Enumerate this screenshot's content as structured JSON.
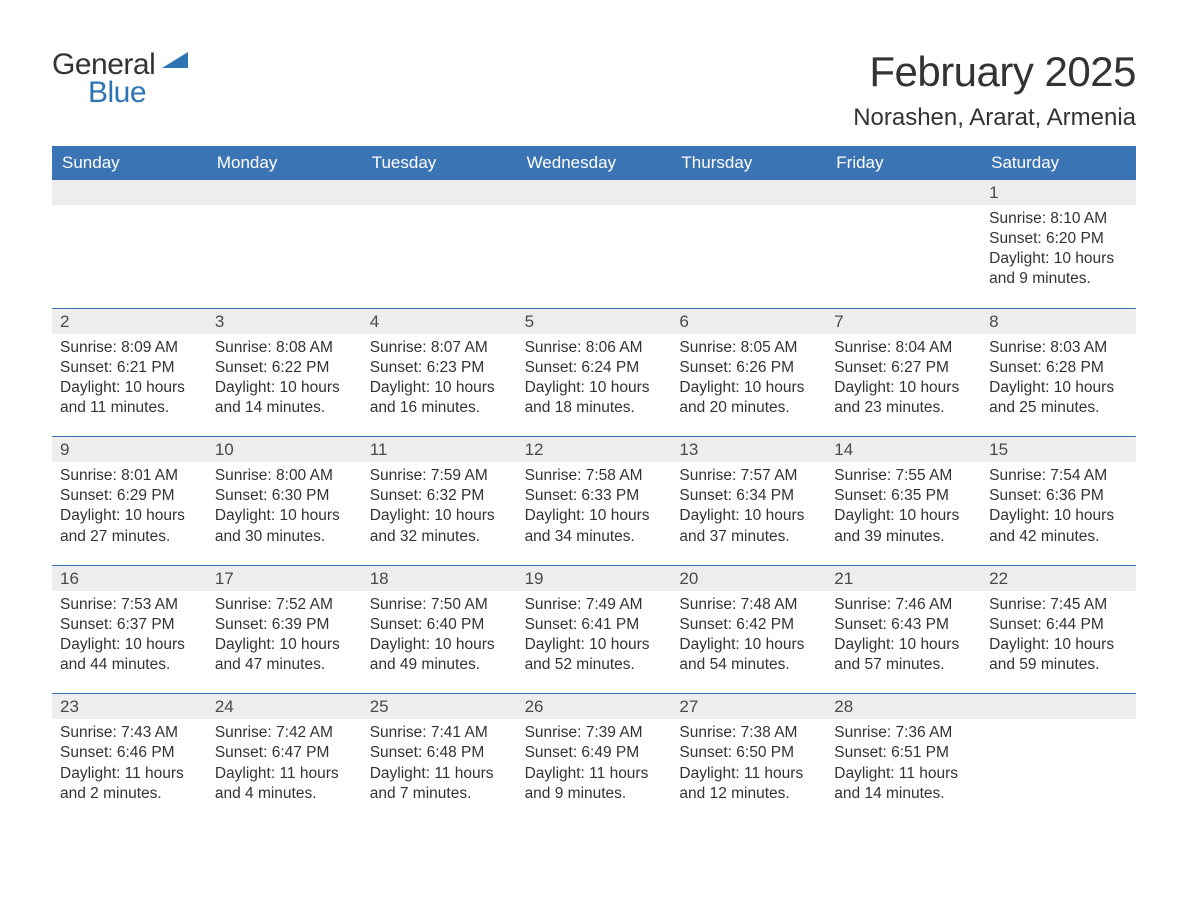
{
  "brand": {
    "part1": "General",
    "part2": "Blue",
    "sail_color": "#2e74b5"
  },
  "title": "February 2025",
  "location": "Norashen, Ararat, Armenia",
  "colors": {
    "header_bg": "#3b74b4",
    "header_fg": "#ffffff",
    "daynum_bg": "#ededed",
    "text": "#333333",
    "rule": "#3b74b4",
    "page_bg": "#ffffff"
  },
  "days_of_week": [
    "Sunday",
    "Monday",
    "Tuesday",
    "Wednesday",
    "Thursday",
    "Friday",
    "Saturday"
  ],
  "weeks": [
    {
      "nums": [
        "",
        "",
        "",
        "",
        "",
        "",
        "1"
      ],
      "cells": [
        "",
        "",
        "",
        "",
        "",
        "",
        "Sunrise: 8:10 AM\nSunset: 6:20 PM\nDaylight: 10 hours and 9 minutes."
      ]
    },
    {
      "nums": [
        "2",
        "3",
        "4",
        "5",
        "6",
        "7",
        "8"
      ],
      "cells": [
        "Sunrise: 8:09 AM\nSunset: 6:21 PM\nDaylight: 10 hours and 11 minutes.",
        "Sunrise: 8:08 AM\nSunset: 6:22 PM\nDaylight: 10 hours and 14 minutes.",
        "Sunrise: 8:07 AM\nSunset: 6:23 PM\nDaylight: 10 hours and 16 minutes.",
        "Sunrise: 8:06 AM\nSunset: 6:24 PM\nDaylight: 10 hours and 18 minutes.",
        "Sunrise: 8:05 AM\nSunset: 6:26 PM\nDaylight: 10 hours and 20 minutes.",
        "Sunrise: 8:04 AM\nSunset: 6:27 PM\nDaylight: 10 hours and 23 minutes.",
        "Sunrise: 8:03 AM\nSunset: 6:28 PM\nDaylight: 10 hours and 25 minutes."
      ]
    },
    {
      "nums": [
        "9",
        "10",
        "11",
        "12",
        "13",
        "14",
        "15"
      ],
      "cells": [
        "Sunrise: 8:01 AM\nSunset: 6:29 PM\nDaylight: 10 hours and 27 minutes.",
        "Sunrise: 8:00 AM\nSunset: 6:30 PM\nDaylight: 10 hours and 30 minutes.",
        "Sunrise: 7:59 AM\nSunset: 6:32 PM\nDaylight: 10 hours and 32 minutes.",
        "Sunrise: 7:58 AM\nSunset: 6:33 PM\nDaylight: 10 hours and 34 minutes.",
        "Sunrise: 7:57 AM\nSunset: 6:34 PM\nDaylight: 10 hours and 37 minutes.",
        "Sunrise: 7:55 AM\nSunset: 6:35 PM\nDaylight: 10 hours and 39 minutes.",
        "Sunrise: 7:54 AM\nSunset: 6:36 PM\nDaylight: 10 hours and 42 minutes."
      ]
    },
    {
      "nums": [
        "16",
        "17",
        "18",
        "19",
        "20",
        "21",
        "22"
      ],
      "cells": [
        "Sunrise: 7:53 AM\nSunset: 6:37 PM\nDaylight: 10 hours and 44 minutes.",
        "Sunrise: 7:52 AM\nSunset: 6:39 PM\nDaylight: 10 hours and 47 minutes.",
        "Sunrise: 7:50 AM\nSunset: 6:40 PM\nDaylight: 10 hours and 49 minutes.",
        "Sunrise: 7:49 AM\nSunset: 6:41 PM\nDaylight: 10 hours and 52 minutes.",
        "Sunrise: 7:48 AM\nSunset: 6:42 PM\nDaylight: 10 hours and 54 minutes.",
        "Sunrise: 7:46 AM\nSunset: 6:43 PM\nDaylight: 10 hours and 57 minutes.",
        "Sunrise: 7:45 AM\nSunset: 6:44 PM\nDaylight: 10 hours and 59 minutes."
      ]
    },
    {
      "nums": [
        "23",
        "24",
        "25",
        "26",
        "27",
        "28",
        ""
      ],
      "cells": [
        "Sunrise: 7:43 AM\nSunset: 6:46 PM\nDaylight: 11 hours and 2 minutes.",
        "Sunrise: 7:42 AM\nSunset: 6:47 PM\nDaylight: 11 hours and 4 minutes.",
        "Sunrise: 7:41 AM\nSunset: 6:48 PM\nDaylight: 11 hours and 7 minutes.",
        "Sunrise: 7:39 AM\nSunset: 6:49 PM\nDaylight: 11 hours and 9 minutes.",
        "Sunrise: 7:38 AM\nSunset: 6:50 PM\nDaylight: 11 hours and 12 minutes.",
        "Sunrise: 7:36 AM\nSunset: 6:51 PM\nDaylight: 11 hours and 14 minutes.",
        ""
      ]
    }
  ]
}
